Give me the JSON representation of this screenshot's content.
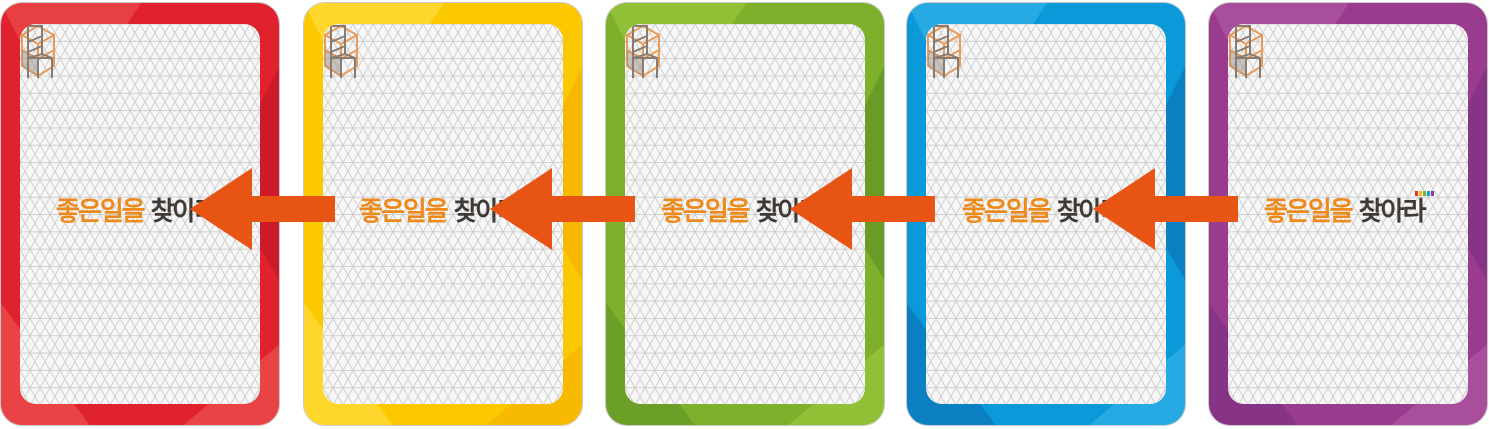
{
  "logo": {
    "title_orange": "좋은일을 ",
    "title_dark": "찾아라",
    "brand_bar_colors": [
      "#e8312f",
      "#f5b800",
      "#7bb52b",
      "#1d9be0",
      "#8e3d94"
    ]
  },
  "cards": [
    {
      "name": "red",
      "frame": "#e0212e",
      "frame_light": "#ee5a55",
      "frame_dark": "#c5182a"
    },
    {
      "name": "yellow",
      "frame": "#fcc800",
      "frame_light": "#ffe04a",
      "frame_dark": "#f3b000"
    },
    {
      "name": "green",
      "frame": "#7fb02b",
      "frame_light": "#9ccb3e",
      "frame_dark": "#5f9426"
    },
    {
      "name": "blue",
      "frame": "#0a9ad9",
      "frame_light": "#3bb5ea",
      "frame_dark": "#0a6eb0"
    },
    {
      "name": "purple",
      "frame": "#9a3c8e",
      "frame_light": "#b45aa6",
      "frame_dark": "#7d2e80"
    }
  ],
  "arrows": {
    "color": "#e85414",
    "count": 4,
    "direction": "left"
  },
  "pattern": {
    "line_color": "#cfcfcf"
  }
}
